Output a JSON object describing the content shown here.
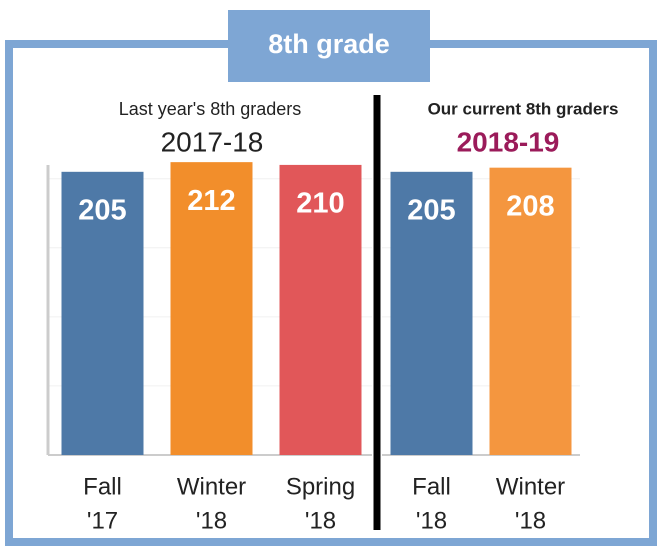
{
  "header": "8th grade",
  "chart_data": [
    {
      "type": "bar",
      "title": "Last year's 8th graders",
      "subtitle": "2017-18",
      "subtitle_color": "#222222",
      "categories": [
        [
          "Fall",
          "'17"
        ],
        [
          "Winter",
          "'18"
        ],
        [
          "Spring",
          "'18"
        ]
      ],
      "values": [
        205,
        212,
        210
      ],
      "colors": [
        "#4e79a7",
        "#f28e2b",
        "#e15759"
      ],
      "ylim": [
        0,
        215
      ],
      "yticks": [
        0,
        50,
        100,
        150,
        200
      ],
      "grid": true
    },
    {
      "type": "bar",
      "title": "Our current 8th graders",
      "subtitle": "2018-19",
      "subtitle_color": "#9b1b5a",
      "categories": [
        [
          "Fall",
          "'18"
        ],
        [
          "Winter",
          "'18"
        ]
      ],
      "values": [
        205,
        208
      ],
      "colors": [
        "#4e79a7",
        "#f4963f"
      ],
      "ylim": [
        0,
        215
      ],
      "yticks": [
        0,
        50,
        100,
        150,
        200
      ],
      "grid": true
    }
  ]
}
